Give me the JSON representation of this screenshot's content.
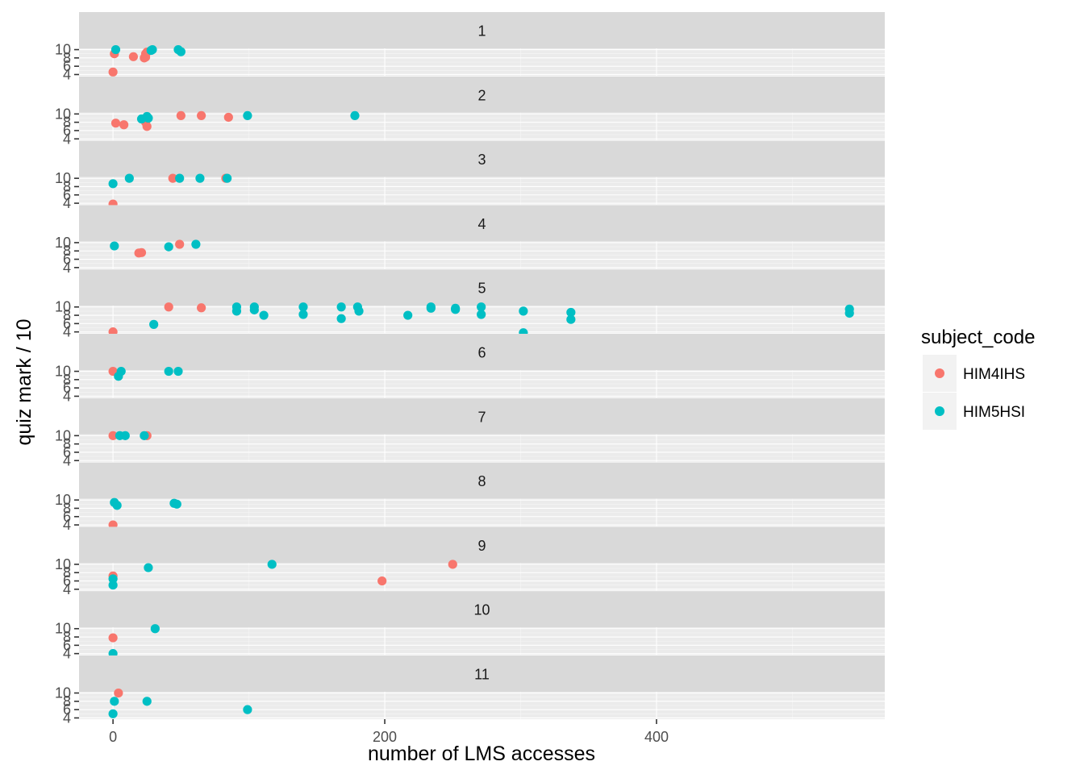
{
  "chart_data": {
    "type": "scatter",
    "facet_by": "quiz",
    "facets": [
      "1",
      "2",
      "3",
      "4",
      "5",
      "6",
      "7",
      "8",
      "9",
      "10",
      "11"
    ],
    "xlabel": "number of LMS accesses",
    "ylabel": "quiz mark / 10",
    "xlim": [
      -25,
      568
    ],
    "ylim": [
      3.7,
      10.3
    ],
    "x_ticks": [
      0,
      200,
      400
    ],
    "y_ticks": [
      4,
      6,
      8,
      10
    ],
    "y_tick_labels": [
      "4",
      "6",
      "8",
      "10"
    ],
    "grid": true,
    "legend": {
      "title": "subject_code",
      "placement": "right"
    },
    "series": [
      {
        "name": "HIM4IHS",
        "color": "#f8766d"
      },
      {
        "name": "HIM5HSI",
        "color": "#00bfc4"
      }
    ],
    "points": {
      "1": {
        "HIM4IHS": [
          [
            0,
            4.6
          ],
          [
            1,
            9.0
          ],
          [
            15,
            8.3
          ],
          [
            23,
            8.0
          ],
          [
            24,
            8.2
          ],
          [
            24,
            9.0
          ],
          [
            25,
            9.4
          ]
        ],
        "HIM5HSI": [
          [
            2,
            10.0
          ],
          [
            28,
            9.8
          ],
          [
            29,
            10.0
          ],
          [
            48,
            10.0
          ],
          [
            50,
            9.5
          ]
        ]
      },
      "2": {
        "HIM4IHS": [
          [
            2,
            7.8
          ],
          [
            8,
            7.4
          ],
          [
            24,
            8.0
          ],
          [
            25,
            7.0
          ],
          [
            50,
            9.6
          ],
          [
            65,
            9.6
          ],
          [
            85,
            9.2
          ]
        ],
        "HIM5HSI": [
          [
            21,
            8.8
          ],
          [
            25,
            9.4
          ],
          [
            26,
            9.0
          ],
          [
            99,
            9.6
          ],
          [
            178,
            9.6
          ]
        ]
      },
      "3": {
        "HIM4IHS": [
          [
            0,
            3.8
          ],
          [
            44,
            10.0
          ],
          [
            83,
            10.0
          ]
        ],
        "HIM5HSI": [
          [
            0,
            8.7
          ],
          [
            12,
            10.0
          ],
          [
            49,
            10.0
          ],
          [
            64,
            10.0
          ],
          [
            84,
            10.0
          ]
        ]
      },
      "4": {
        "HIM4IHS": [
          [
            19,
            7.5
          ],
          [
            21,
            7.6
          ],
          [
            49,
            9.6
          ]
        ],
        "HIM5HSI": [
          [
            1,
            9.2
          ],
          [
            41,
            9.0
          ],
          [
            61,
            9.6
          ]
        ]
      },
      "5": {
        "HIM4IHS": [
          [
            0,
            4.0
          ],
          [
            41,
            10.0
          ],
          [
            65,
            9.8
          ]
        ],
        "HIM5HSI": [
          [
            30,
            5.8
          ],
          [
            91,
            10.0
          ],
          [
            91,
            9.0
          ],
          [
            104,
            10.0
          ],
          [
            104,
            9.3
          ],
          [
            111,
            8.0
          ],
          [
            140,
            10.0
          ],
          [
            140,
            8.2
          ],
          [
            168,
            10.0
          ],
          [
            168,
            7.2
          ],
          [
            180,
            10.0
          ],
          [
            181,
            9.0
          ],
          [
            217,
            8.0
          ],
          [
            234,
            10.0
          ],
          [
            234,
            9.7
          ],
          [
            252,
            9.7
          ],
          [
            252,
            9.4
          ],
          [
            271,
            10.0
          ],
          [
            271,
            8.2
          ],
          [
            302,
            9.0
          ],
          [
            302,
            3.8
          ],
          [
            337,
            8.7
          ],
          [
            337,
            7.0
          ],
          [
            542,
            9.5
          ],
          [
            542,
            8.5
          ]
        ]
      },
      "6": {
        "HIM4IHS": [
          [
            0,
            10.0
          ]
        ],
        "HIM5HSI": [
          [
            4,
            8.8
          ],
          [
            6,
            10.0
          ],
          [
            41,
            10.0
          ],
          [
            48,
            10.0
          ]
        ]
      },
      "7": {
        "HIM4IHS": [
          [
            0,
            10.0
          ],
          [
            25,
            10.0
          ]
        ],
        "HIM5HSI": [
          [
            5,
            10.0
          ],
          [
            9,
            10.0
          ],
          [
            23,
            10.0
          ]
        ]
      },
      "8": {
        "HIM4IHS": [
          [
            0,
            4.0
          ]
        ],
        "HIM5HSI": [
          [
            1,
            9.4
          ],
          [
            3,
            8.7
          ],
          [
            45,
            9.2
          ],
          [
            47,
            9.0
          ]
        ]
      },
      "9": {
        "HIM4IHS": [
          [
            0,
            7.2
          ],
          [
            198,
            6.0
          ],
          [
            250,
            10.0
          ]
        ],
        "HIM5HSI": [
          [
            0,
            5.0
          ],
          [
            0,
            6.5
          ],
          [
            26,
            9.2
          ],
          [
            117,
            10.0
          ]
        ]
      },
      "10": {
        "HIM4IHS": [
          [
            0,
            7.8
          ]
        ],
        "HIM5HSI": [
          [
            0,
            4.0
          ],
          [
            31,
            10.0
          ]
        ]
      },
      "11": {
        "HIM4IHS": [
          [
            4,
            10.0
          ]
        ],
        "HIM5HSI": [
          [
            0,
            5.0
          ],
          [
            1,
            8.0
          ],
          [
            25,
            8.0
          ],
          [
            99,
            6.0
          ]
        ]
      }
    }
  }
}
